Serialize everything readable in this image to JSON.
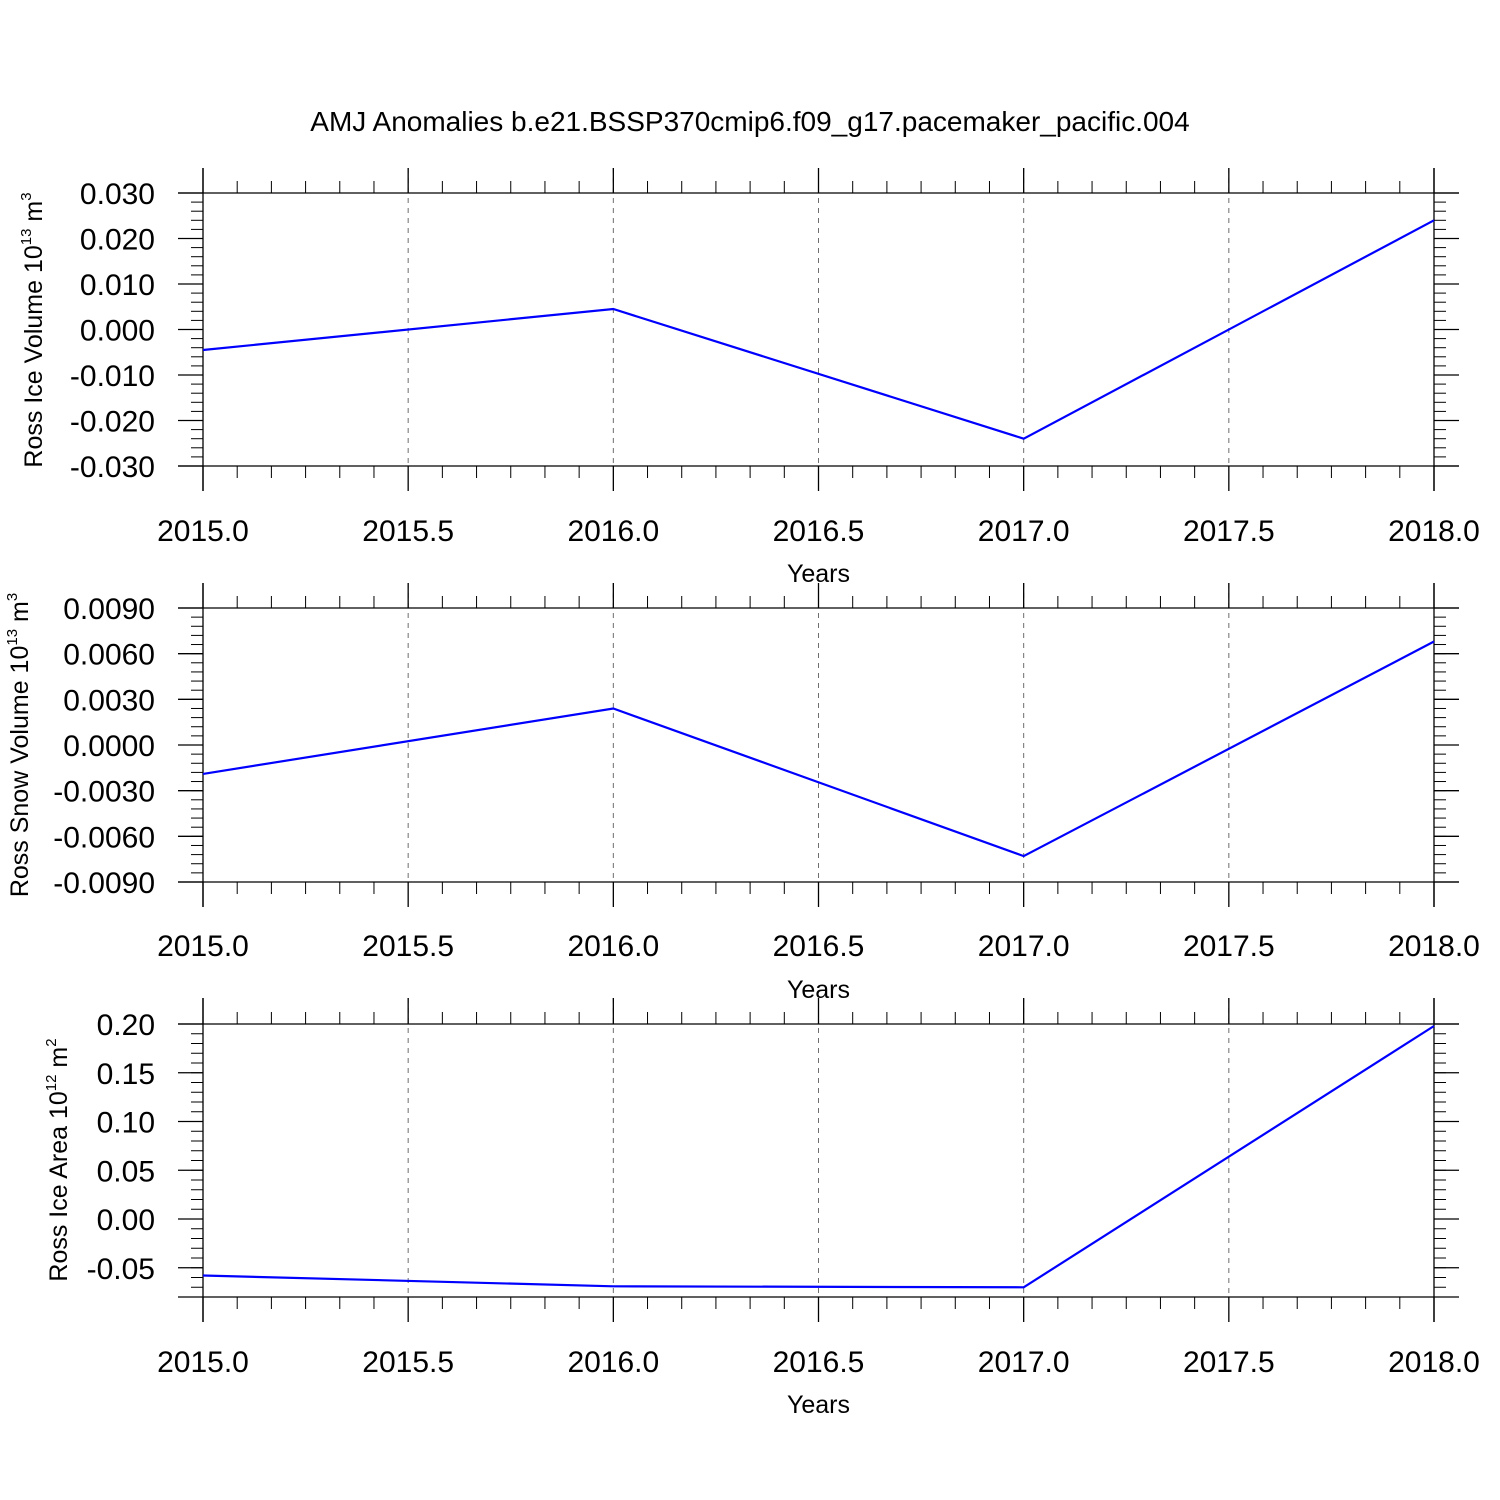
{
  "title": "AMJ Anomalies b.e21.BSSP370cmip6.f09_g17.pacemaker_pacific.004",
  "chart_data": [
    {
      "type": "line",
      "xlabel": "Years",
      "ylabel": {
        "text": "Ross Ice Volume 10",
        "exp": "13",
        "unit": " m",
        "unit_exp": "3"
      },
      "xlim": [
        2015.0,
        2018.0
      ],
      "ylim": [
        -0.03,
        0.03
      ],
      "x_ticks": [
        "2015.0",
        "2015.5",
        "2016.0",
        "2016.5",
        "2017.0",
        "2017.5",
        "2018.0"
      ],
      "y_ticks": [
        "0.030",
        "0.020",
        "0.010",
        "0.000",
        "-0.010",
        "-0.020",
        "-0.030"
      ],
      "grid": "x-dashed",
      "line_color": "#0000ff",
      "x": [
        2015.0,
        2016.0,
        2017.0,
        2018.0
      ],
      "y": [
        -0.0045,
        0.0045,
        -0.024,
        0.024
      ]
    },
    {
      "type": "line",
      "xlabel": "Years",
      "ylabel": {
        "text": "Ross Snow Volume 10",
        "exp": "13",
        "unit": " m",
        "unit_exp": "3"
      },
      "xlim": [
        2015.0,
        2018.0
      ],
      "ylim": [
        -0.009,
        0.009
      ],
      "x_ticks": [
        "2015.0",
        "2015.5",
        "2016.0",
        "2016.5",
        "2017.0",
        "2017.5",
        "2018.0"
      ],
      "y_ticks": [
        "0.0090",
        "0.0060",
        "0.0030",
        "0.0000",
        "-0.0030",
        "-0.0060",
        "-0.0090"
      ],
      "grid": "x-dashed",
      "line_color": "#0000ff",
      "x": [
        2015.0,
        2016.0,
        2017.0,
        2018.0
      ],
      "y": [
        -0.0019,
        0.0024,
        -0.0073,
        0.0068
      ]
    },
    {
      "type": "line",
      "xlabel": "Years",
      "ylabel": {
        "text": "Ross Ice Area 10",
        "exp": "12",
        "unit": " m",
        "unit_exp": "2"
      },
      "xlim": [
        2015.0,
        2018.0
      ],
      "ylim": [
        -0.08,
        0.2
      ],
      "x_ticks": [
        "2015.0",
        "2015.5",
        "2016.0",
        "2016.5",
        "2017.0",
        "2017.5",
        "2018.0"
      ],
      "y_ticks": [
        "0.20",
        "0.15",
        "0.10",
        "0.05",
        "0.00",
        "-0.05"
      ],
      "grid": "x-dashed",
      "line_color": "#0000ff",
      "x": [
        2015.0,
        2016.0,
        2017.0,
        2018.0
      ],
      "y": [
        -0.058,
        -0.069,
        -0.07,
        0.198
      ]
    }
  ]
}
